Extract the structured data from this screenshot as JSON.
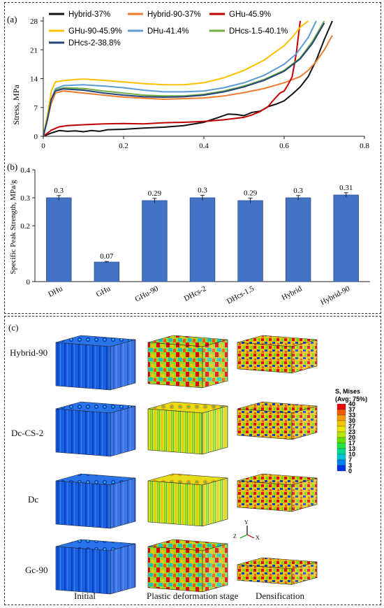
{
  "panel_a": {
    "letter": "(a)"
  },
  "panel_b": {
    "letter": "(b)"
  },
  "panel_c": {
    "letter": "(c)",
    "rows": [
      "Hybrid-90",
      "Dc-CS-2",
      "Dc",
      "Gc-90"
    ],
    "stages": [
      "Initial",
      "Plastic deformation stage",
      "Densification"
    ],
    "colorbar": {
      "title": "S, Mises",
      "subtitle": "(Avg: 75%)",
      "ticks": [
        "40",
        "37",
        "33",
        "30",
        "27",
        "23",
        "20",
        "17",
        "13",
        "10",
        "7",
        "3",
        "0"
      ],
      "colors": [
        "#e8000b",
        "#f25a00",
        "#f59a00",
        "#f5c400",
        "#e8e600",
        "#b8e600",
        "#66dd00",
        "#1ee640",
        "#00d98f",
        "#00c2d9",
        "#0080f0",
        "#0033e6"
      ]
    },
    "axis_triad": {
      "y": "Y",
      "z": "Z",
      "x": "X"
    }
  },
  "chart_data": [
    {
      "type": "line",
      "xlabel": "",
      "ylabel": "Stress, MPa",
      "xlim": [
        0,
        0.8
      ],
      "ylim": [
        0,
        28
      ],
      "xticks": [
        "0",
        "0.2",
        "0.4",
        "0.6",
        "0.8"
      ],
      "yticks": [
        "0",
        "7",
        "14",
        "21",
        "28"
      ],
      "legend_placement": "top-left",
      "series": [
        {
          "name": "Hybrid-37%",
          "color": "#111111",
          "x": [
            0,
            0.02,
            0.04,
            0.06,
            0.08,
            0.1,
            0.12,
            0.14,
            0.16,
            0.2,
            0.25,
            0.3,
            0.35,
            0.4,
            0.44,
            0.46,
            0.48,
            0.5,
            0.52,
            0.54,
            0.56,
            0.58,
            0.6,
            0.62,
            0.64,
            0.66,
            0.68,
            0.7,
            0.72
          ],
          "y": [
            0,
            0.8,
            1.4,
            1.2,
            1.3,
            1.1,
            1.4,
            1.2,
            1.6,
            1.7,
            2.0,
            2.2,
            2.6,
            3.4,
            4.7,
            5.4,
            5.3,
            5.0,
            5.8,
            6.1,
            7.2,
            7.8,
            8.6,
            10.2,
            12.0,
            14.5,
            18.5,
            23.5,
            28
          ]
        },
        {
          "name": "Hybrid-90-37%",
          "color": "#ed7d31",
          "x": [
            0,
            0.01,
            0.02,
            0.03,
            0.05,
            0.1,
            0.15,
            0.2,
            0.3,
            0.4,
            0.45,
            0.5,
            0.55,
            0.6,
            0.64,
            0.66,
            0.68,
            0.7,
            0.72
          ],
          "y": [
            0,
            4,
            8,
            10.5,
            11.0,
            10.5,
            10.0,
            9.5,
            9.0,
            9.3,
            9.8,
            10.6,
            11.6,
            13.0,
            14.5,
            16.0,
            18.2,
            21.0,
            24.5
          ]
        },
        {
          "name": "GHu-45.9%",
          "color": "#c00000",
          "x": [
            0,
            0.02,
            0.04,
            0.06,
            0.1,
            0.15,
            0.2,
            0.25,
            0.3,
            0.35,
            0.4,
            0.45,
            0.5,
            0.52,
            0.54,
            0.56,
            0.57,
            0.58,
            0.59,
            0.6,
            0.61,
            0.62,
            0.63,
            0.64
          ],
          "y": [
            0,
            1.5,
            2.3,
            2.6,
            2.8,
            3.0,
            3.1,
            3.0,
            3.3,
            3.4,
            3.6,
            4.0,
            4.6,
            5.2,
            6.0,
            7.2,
            8.4,
            9.5,
            10.5,
            11.0,
            12.6,
            14.5,
            20.0,
            28
          ]
        },
        {
          "name": "GHu-90-45.9%",
          "color": "#ffc000",
          "x": [
            0,
            0.01,
            0.02,
            0.03,
            0.05,
            0.08,
            0.1,
            0.15,
            0.2,
            0.25,
            0.3,
            0.35,
            0.4,
            0.45,
            0.5,
            0.55,
            0.6,
            0.62,
            0.64,
            0.66
          ],
          "y": [
            0,
            5,
            11,
            13.2,
            13.5,
            13.8,
            13.9,
            13.6,
            13.2,
            12.8,
            12.5,
            12.5,
            13.0,
            14.2,
            16.0,
            18.5,
            22.0,
            24.0,
            26.5,
            28
          ]
        },
        {
          "name": "DHu-41.4%",
          "color": "#5b9bd5",
          "x": [
            0,
            0.01,
            0.02,
            0.03,
            0.05,
            0.1,
            0.15,
            0.2,
            0.25,
            0.3,
            0.35,
            0.4,
            0.45,
            0.5,
            0.55,
            0.6,
            0.63,
            0.66,
            0.68
          ],
          "y": [
            0,
            4,
            9,
            11.5,
            12.3,
            12.5,
            12.2,
            11.8,
            11.2,
            10.8,
            10.8,
            11.0,
            11.8,
            13.0,
            14.8,
            17.5,
            20.0,
            24.0,
            28
          ]
        },
        {
          "name": "DHcs-1.5-40.1%",
          "color": "#70ad47",
          "x": [
            0,
            0.01,
            0.02,
            0.03,
            0.05,
            0.1,
            0.15,
            0.2,
            0.25,
            0.3,
            0.35,
            0.4,
            0.45,
            0.5,
            0.55,
            0.6,
            0.64,
            0.67,
            0.7
          ],
          "y": [
            0,
            4,
            9,
            11.2,
            11.8,
            11.6,
            11.0,
            10.5,
            10.0,
            9.8,
            9.8,
            10.2,
            11.0,
            12.2,
            13.8,
            16.0,
            19.0,
            23.0,
            28
          ]
        },
        {
          "name": "DHcs-2-38.8%",
          "color": "#264478",
          "x": [
            0,
            0.01,
            0.02,
            0.03,
            0.05,
            0.1,
            0.15,
            0.2,
            0.25,
            0.3,
            0.35,
            0.4,
            0.45,
            0.5,
            0.55,
            0.6,
            0.64,
            0.67,
            0.7
          ],
          "y": [
            0,
            4,
            9,
            11.0,
            11.5,
            11.2,
            10.5,
            10.0,
            9.6,
            9.5,
            9.6,
            10.0,
            10.8,
            12.0,
            13.6,
            15.8,
            18.8,
            22.5,
            27.5
          ]
        }
      ]
    },
    {
      "type": "bar",
      "xlabel": "",
      "ylabel": "Specific Peak Strength, MPa/g",
      "ylim": [
        0,
        0.4
      ],
      "yticks": [
        "0",
        "0.2",
        "0.3",
        "0.4"
      ],
      "categories": [
        "DHu",
        "GHu",
        "GHu-90",
        "DHcs-2",
        "DHcs-1.5",
        "Hybrid",
        "Hybrid-90"
      ],
      "values": [
        0.3,
        0.07,
        0.29,
        0.3,
        0.29,
        0.3,
        0.31
      ],
      "value_labels": [
        "0.3",
        "0.07",
        "0.29",
        "0.3",
        "0.29",
        "0.3",
        "0.31"
      ],
      "error": [
        0.008,
        0.002,
        0.008,
        0.009,
        0.009,
        0.008,
        0.008
      ],
      "bar_color": "#4472c4"
    }
  ]
}
